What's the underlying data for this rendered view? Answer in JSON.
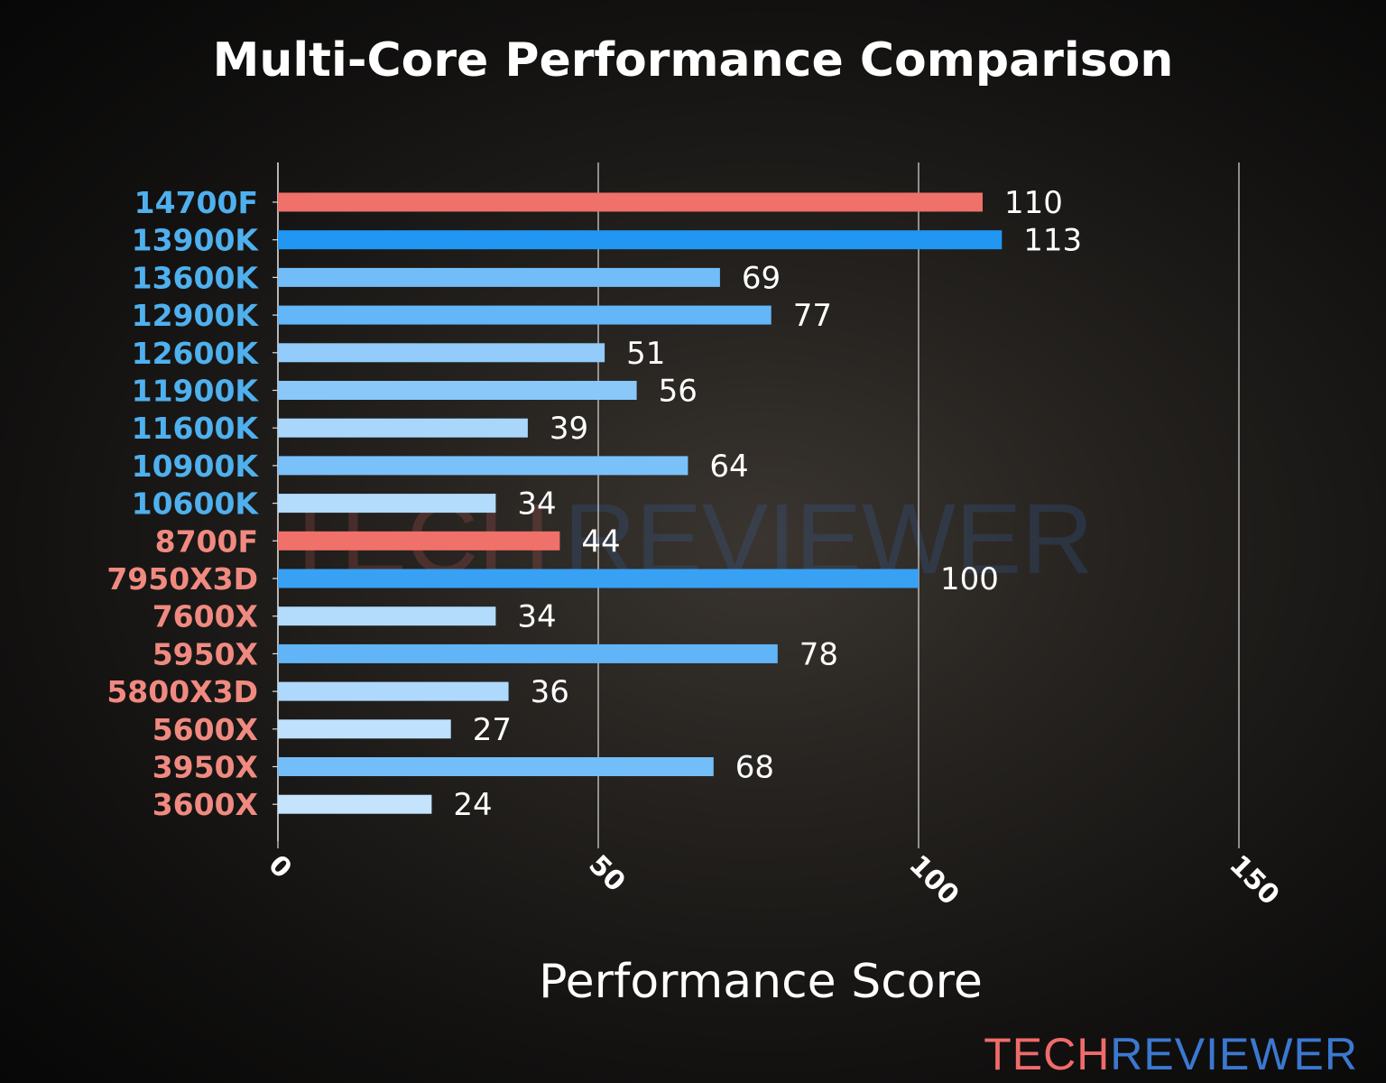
{
  "chart_data": {
    "type": "bar",
    "orientation": "horizontal",
    "title": "Multi-Core Performance Comparison",
    "xlabel": "Performance Score",
    "ylabel": "",
    "xlim": [
      0,
      150
    ],
    "xticks": [
      0,
      50,
      100,
      150
    ],
    "grid": "vertical",
    "categories": [
      "14700F",
      "13900K",
      "13600K",
      "12900K",
      "12600K",
      "11900K",
      "11600K",
      "10900K",
      "10600K",
      "8700F",
      "7950X3D",
      "7600X",
      "5950X",
      "5800X3D",
      "5600X",
      "3950X",
      "3600X"
    ],
    "values": [
      110,
      113,
      69,
      77,
      51,
      56,
      39,
      64,
      34,
      44,
      100,
      34,
      78,
      36,
      27,
      68,
      24
    ],
    "highlighted": [
      "14700F",
      "8700F"
    ],
    "label_groups": {
      "blue": [
        "14700F",
        "13900K",
        "13600K",
        "12900K",
        "12600K",
        "11900K",
        "11600K",
        "10900K",
        "10600K"
      ],
      "salmon": [
        "8700F",
        "7950X3D",
        "7600X",
        "5950X",
        "5800X3D",
        "5600X",
        "3950X",
        "3600X"
      ]
    }
  },
  "colors": {
    "highlight_bar": "#f0706a",
    "bar_high": "#2196f3",
    "bar_low": "#c4e4fd",
    "label_blue": "#4fb0ee",
    "label_salmon": "#f08a80",
    "background": "#1a1816"
  },
  "logo": {
    "part1": "TECH",
    "part2": "REVIEWER",
    "color1": "#f06b6b",
    "color2": "#3b78d0"
  },
  "watermark": {
    "part1": "TECH",
    "part2": "REVIEWER"
  }
}
